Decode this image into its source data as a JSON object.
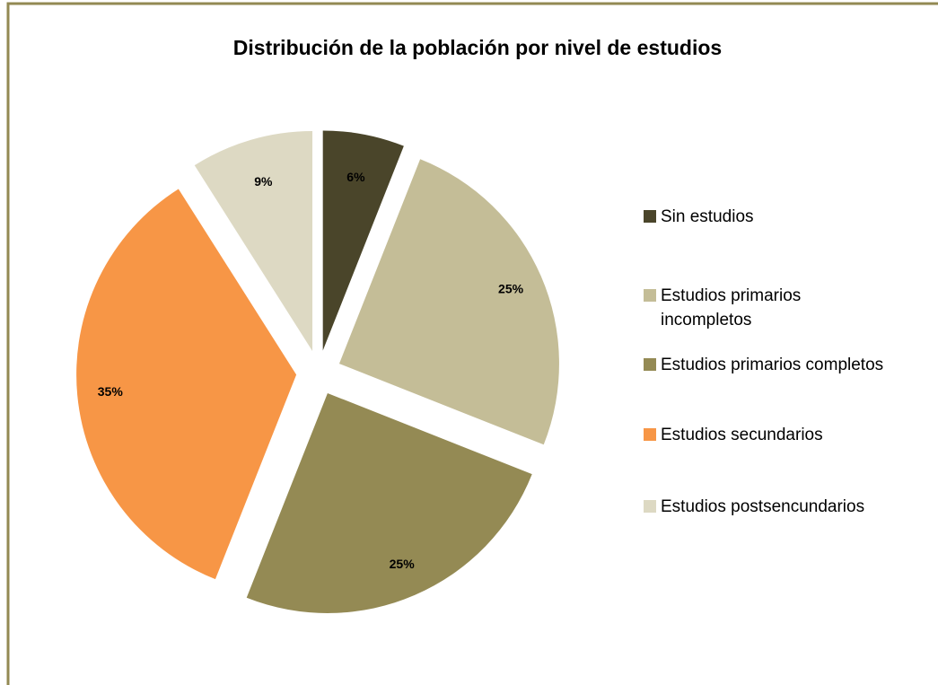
{
  "chart_data": {
    "type": "pie",
    "title": "Distribución de la población por nivel de estudios",
    "categories": [
      "Sin estudios",
      "Estudios primarios incompletos",
      "Estudios primarios completos",
      "Estudios secundarios",
      "Estudios postsencundarios"
    ],
    "values": [
      6,
      25,
      25,
      35,
      9
    ],
    "colors": [
      "#4a452a",
      "#c4bd97",
      "#948a54",
      "#f79646",
      "#ddd9c3"
    ],
    "legend": "right"
  }
}
